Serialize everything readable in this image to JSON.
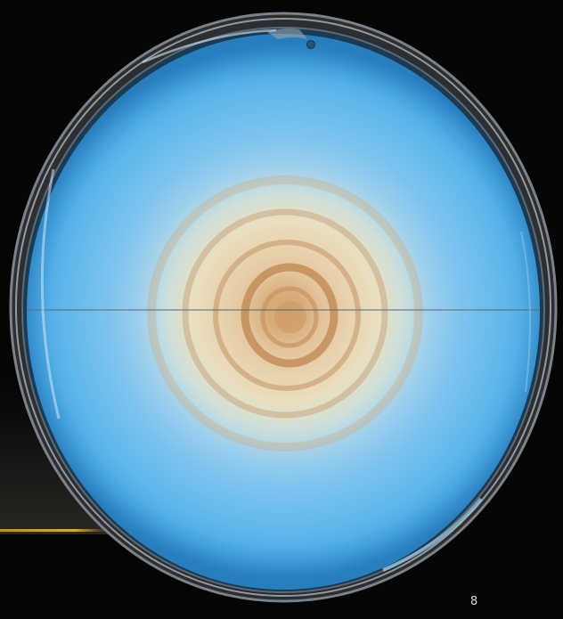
{
  "slide": {
    "number": "8"
  },
  "image": {
    "subject": "petri-dish",
    "colors": {
      "medium_blue": "#5fb8ea",
      "medium_deep_blue": "#2f8fd0",
      "zone_center": "#d3a36e",
      "zone_cream": "#eadfc0",
      "background": "#050505",
      "accent_line": "#e0a437"
    }
  }
}
